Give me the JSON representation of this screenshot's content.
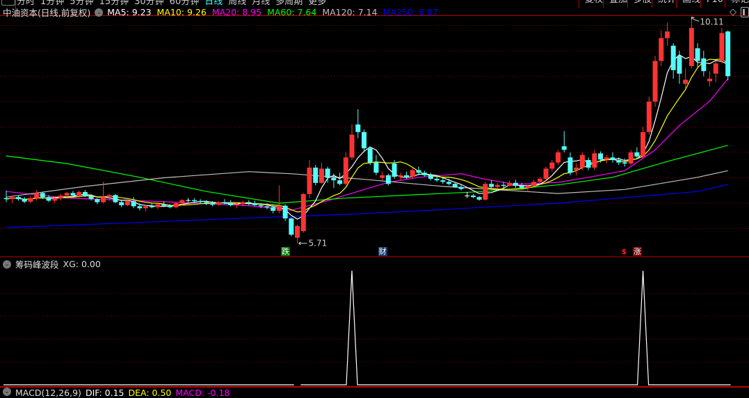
{
  "toolbar": {
    "periods": [
      "分时",
      "1分钟",
      "5分钟",
      "15分钟",
      "30分钟",
      "60分钟",
      "日线",
      "周线",
      "月线",
      "多周期",
      "更多"
    ],
    "active_period": "日线",
    "right_buttons": [
      "复权",
      "叠加",
      "多股",
      "统计",
      "画线",
      "F10",
      "标记"
    ]
  },
  "header": {
    "title": "中油资本(日线,前复权)",
    "ma": [
      {
        "label": "MA5: 9.23",
        "color": "#ffffff"
      },
      {
        "label": "MA10: 9.26",
        "color": "#ffff00"
      },
      {
        "label": "MA20: 8.95",
        "color": "#ff00ff"
      },
      {
        "label": "MA60: 7.64",
        "color": "#00ff00"
      },
      {
        "label": "MA120: 7.14",
        "color": "#c0c0c0"
      },
      {
        "label": "MA250: 6.87",
        "color": "#0000ff"
      }
    ]
  },
  "colors": {
    "up": "#ff3333",
    "down": "#54ffff",
    "grid": "#8b0000",
    "separator": "#c00000"
  },
  "annotations": {
    "high_label": "10.11",
    "low_label": "5.71"
  },
  "markers": [
    {
      "text": "跌",
      "index": 46,
      "bg": "#007a00",
      "color": "#fff"
    },
    {
      "text": "财",
      "index": 62,
      "bg": "#1a3a6a",
      "color": "#fff"
    },
    {
      "text": "$",
      "index": 102,
      "bg": "transparent",
      "color": "#ff2020"
    },
    {
      "text": "涨",
      "index": 104,
      "bg": "#7a0000",
      "color": "#fff"
    }
  ],
  "indicator": {
    "title": "筹码峰波段",
    "value_label": "XG: 0.00",
    "signal_indices": [
      57,
      105
    ],
    "gap_indices": [
      48
    ]
  },
  "bottom_indicator": {
    "title": "MACD(12,26,9)",
    "items": [
      {
        "label": "DIF: 0.15",
        "color": "#ffffff"
      },
      {
        "label": "DEA: 0.50",
        "color": "#ffff00"
      },
      {
        "label": "MACD: -0.18",
        "color": "#ff00ff"
      }
    ]
  },
  "chart_data": {
    "type": "candlestick",
    "y_grid_step": 0.5,
    "ylim": [
      5.6,
      10.2
    ],
    "ohlc": [
      [
        6.6,
        6.75,
        6.52,
        6.58
      ],
      [
        6.58,
        6.65,
        6.5,
        6.62
      ],
      [
        6.62,
        6.66,
        6.55,
        6.58
      ],
      [
        6.58,
        6.62,
        6.5,
        6.53
      ],
      [
        6.53,
        6.64,
        6.5,
        6.6
      ],
      [
        6.6,
        6.76,
        6.55,
        6.7
      ],
      [
        6.7,
        6.72,
        6.58,
        6.62
      ],
      [
        6.62,
        6.66,
        6.52,
        6.55
      ],
      [
        6.55,
        6.62,
        6.5,
        6.6
      ],
      [
        6.6,
        6.68,
        6.55,
        6.65
      ],
      [
        6.65,
        6.72,
        6.62,
        6.7
      ],
      [
        6.7,
        6.74,
        6.62,
        6.65
      ],
      [
        6.65,
        6.75,
        6.6,
        6.72
      ],
      [
        6.72,
        6.76,
        6.62,
        6.64
      ],
      [
        6.64,
        6.68,
        6.55,
        6.58
      ],
      [
        6.58,
        6.6,
        6.48,
        6.52
      ],
      [
        6.52,
        6.92,
        6.5,
        6.62
      ],
      [
        6.62,
        6.68,
        6.55,
        6.66
      ],
      [
        6.66,
        6.68,
        6.5,
        6.52
      ],
      [
        6.52,
        6.55,
        6.42,
        6.46
      ],
      [
        6.46,
        6.56,
        6.44,
        6.54
      ],
      [
        6.54,
        6.62,
        6.4,
        6.44
      ],
      [
        6.44,
        6.5,
        6.36,
        6.4
      ],
      [
        6.4,
        6.46,
        6.34,
        6.44
      ],
      [
        6.44,
        6.5,
        6.4,
        6.42
      ],
      [
        6.42,
        6.5,
        6.38,
        6.48
      ],
      [
        6.48,
        6.54,
        6.42,
        6.45
      ],
      [
        6.45,
        6.48,
        6.4,
        6.42
      ],
      [
        6.42,
        6.52,
        6.4,
        6.5
      ],
      [
        6.5,
        6.58,
        6.46,
        6.56
      ],
      [
        6.56,
        6.6,
        6.52,
        6.56
      ],
      [
        6.56,
        6.6,
        6.5,
        6.54
      ],
      [
        6.54,
        6.58,
        6.48,
        6.52
      ],
      [
        6.52,
        6.56,
        6.46,
        6.5
      ],
      [
        6.5,
        6.54,
        6.44,
        6.47
      ],
      [
        6.47,
        6.54,
        6.45,
        6.52
      ],
      [
        6.52,
        6.58,
        6.48,
        6.5
      ],
      [
        6.5,
        6.56,
        6.44,
        6.46
      ],
      [
        6.46,
        6.52,
        6.4,
        6.48
      ],
      [
        6.48,
        6.55,
        6.44,
        6.52
      ],
      [
        6.52,
        6.56,
        6.46,
        6.5
      ],
      [
        6.5,
        6.55,
        6.45,
        6.46
      ],
      [
        6.46,
        6.5,
        6.4,
        6.44
      ],
      [
        6.44,
        6.5,
        6.38,
        6.42
      ],
      [
        6.42,
        6.48,
        6.3,
        6.35
      ],
      [
        6.35,
        6.85,
        6.3,
        6.45
      ],
      [
        6.45,
        6.48,
        6.15,
        6.2
      ],
      [
        6.2,
        6.22,
        5.85,
        5.88
      ],
      [
        5.82,
        6.08,
        5.71,
        6.05
      ],
      [
        5.95,
        6.7,
        5.92,
        6.68
      ],
      [
        6.68,
        7.35,
        6.6,
        7.2
      ],
      [
        7.2,
        7.25,
        6.85,
        6.9
      ],
      [
        6.9,
        7.3,
        6.88,
        7.18
      ],
      [
        7.18,
        7.22,
        6.9,
        7.0
      ],
      [
        7.0,
        7.08,
        6.8,
        6.95
      ],
      [
        6.95,
        7.1,
        6.85,
        6.88
      ],
      [
        6.88,
        7.5,
        6.85,
        7.4
      ],
      [
        7.4,
        8.05,
        7.35,
        7.85
      ],
      [
        8.05,
        8.35,
        7.78,
        7.9
      ],
      [
        7.9,
        7.95,
        7.5,
        7.58
      ],
      [
        7.58,
        7.62,
        7.25,
        7.3
      ],
      [
        7.3,
        7.45,
        7.05,
        7.1
      ],
      [
        7.0,
        7.12,
        6.95,
        7.05
      ],
      [
        7.05,
        7.08,
        6.85,
        6.88
      ],
      [
        7.28,
        7.35,
        6.98,
        7.02
      ],
      [
        7.02,
        7.1,
        6.95,
        7.05
      ],
      [
        7.05,
        7.12,
        6.98,
        7.02
      ],
      [
        7.02,
        7.2,
        6.98,
        7.15
      ],
      [
        7.15,
        7.22,
        7.05,
        7.1
      ],
      [
        7.1,
        7.14,
        7.02,
        7.05
      ],
      [
        7.05,
        7.1,
        6.95,
        6.98
      ],
      [
        6.98,
        7.05,
        6.92,
        6.95
      ],
      [
        6.95,
        7.0,
        6.88,
        6.92
      ],
      [
        6.92,
        6.98,
        6.85,
        6.88
      ],
      [
        6.88,
        6.92,
        6.8,
        6.82
      ],
      [
        6.82,
        6.86,
        6.75,
        6.78
      ],
      [
        6.65,
        6.72,
        6.6,
        6.65
      ],
      [
        6.65,
        6.68,
        6.6,
        6.62
      ],
      [
        6.62,
        6.64,
        6.55,
        6.57
      ],
      [
        6.57,
        6.92,
        6.55,
        6.88
      ],
      [
        6.88,
        6.95,
        6.78,
        6.82
      ],
      [
        6.82,
        6.9,
        6.78,
        6.86
      ],
      [
        6.86,
        6.92,
        6.8,
        6.84
      ],
      [
        6.84,
        6.95,
        6.82,
        6.9
      ],
      [
        6.9,
        6.96,
        6.8,
        6.84
      ],
      [
        6.84,
        6.9,
        6.78,
        6.8
      ],
      [
        6.8,
        6.86,
        6.72,
        6.84
      ],
      [
        6.84,
        6.96,
        6.82,
        6.92
      ],
      [
        6.92,
        7.02,
        6.88,
        6.98
      ],
      [
        6.98,
        7.22,
        6.95,
        7.18
      ],
      [
        7.18,
        7.35,
        7.12,
        7.3
      ],
      [
        7.3,
        7.55,
        7.25,
        7.5
      ],
      [
        7.62,
        7.92,
        7.5,
        7.55
      ],
      [
        7.4,
        7.5,
        7.05,
        7.1
      ],
      [
        7.15,
        7.28,
        7.05,
        7.2
      ],
      [
        7.2,
        7.5,
        7.15,
        7.45
      ],
      [
        7.35,
        7.4,
        7.15,
        7.2
      ],
      [
        7.2,
        7.55,
        7.15,
        7.48
      ],
      [
        7.48,
        7.52,
        7.3,
        7.36
      ],
      [
        7.36,
        7.45,
        7.28,
        7.4
      ],
      [
        7.4,
        7.5,
        7.3,
        7.35
      ],
      [
        7.35,
        7.4,
        7.25,
        7.3
      ],
      [
        7.3,
        7.38,
        7.22,
        7.28
      ],
      [
        7.28,
        7.55,
        7.25,
        7.5
      ],
      [
        7.5,
        7.6,
        7.38,
        7.42
      ],
      [
        7.42,
        8.0,
        7.4,
        7.9
      ],
      [
        7.9,
        8.6,
        7.85,
        8.5
      ],
      [
        8.5,
        9.4,
        8.4,
        9.3
      ],
      [
        9.3,
        9.9,
        9.2,
        9.75
      ],
      [
        9.75,
        10.05,
        9.6,
        9.88
      ],
      [
        9.6,
        9.65,
        8.95,
        9.12
      ],
      [
        9.4,
        9.5,
        8.85,
        9.05
      ],
      [
        8.85,
        9.15,
        8.75,
        8.93
      ],
      [
        9.2,
        10.11,
        9.15,
        9.95
      ],
      [
        9.55,
        9.65,
        9.18,
        9.3
      ],
      [
        9.35,
        9.5,
        9.0,
        9.1
      ],
      [
        8.9,
        9.1,
        8.8,
        8.95
      ],
      [
        9.05,
        9.3,
        8.88,
        9.25
      ],
      [
        9.3,
        9.95,
        9.25,
        9.85
      ],
      [
        9.88,
        9.9,
        8.92,
        9.0
      ]
    ],
    "ma_computed": [
      {
        "name": "MA5",
        "period": 5,
        "color": "#ffffff"
      },
      {
        "name": "MA10",
        "period": 10,
        "color": "#ffff00"
      }
    ],
    "ma_sampled": [
      {
        "name": "MA20",
        "color": "#ff00ff",
        "points": [
          [
            0,
            6.73
          ],
          [
            10,
            6.6
          ],
          [
            26,
            6.53
          ],
          [
            40,
            6.45
          ],
          [
            47,
            6.36
          ],
          [
            53,
            6.55
          ],
          [
            59,
            6.77
          ],
          [
            63,
            6.91
          ],
          [
            68,
            7.01
          ],
          [
            75,
            7.08
          ],
          [
            79,
            6.97
          ],
          [
            84,
            6.87
          ],
          [
            91,
            6.91
          ],
          [
            96,
            7.01
          ],
          [
            102,
            7.14
          ],
          [
            107,
            7.55
          ],
          [
            111,
            8.03
          ],
          [
            116,
            8.51
          ],
          [
            119,
            8.95
          ]
        ]
      },
      {
        "name": "MA60",
        "color": "#00ff00",
        "points": [
          [
            0,
            7.43
          ],
          [
            10,
            7.28
          ],
          [
            22,
            7.01
          ],
          [
            33,
            6.73
          ],
          [
            45,
            6.5
          ],
          [
            56,
            6.6
          ],
          [
            68,
            6.67
          ],
          [
            79,
            6.73
          ],
          [
            91,
            6.86
          ],
          [
            100,
            7.01
          ],
          [
            109,
            7.32
          ],
          [
            119,
            7.64
          ]
        ]
      },
      {
        "name": "MA120",
        "color": "#c0c0c0",
        "points": [
          [
            0,
            6.62
          ],
          [
            13,
            6.83
          ],
          [
            26,
            7.0
          ],
          [
            40,
            7.12
          ],
          [
            47,
            7.08
          ],
          [
            59,
            6.97
          ],
          [
            72,
            6.83
          ],
          [
            79,
            6.78
          ],
          [
            91,
            6.69
          ],
          [
            102,
            6.77
          ],
          [
            114,
            7.01
          ],
          [
            119,
            7.14
          ]
        ]
      },
      {
        "name": "MA250",
        "color": "#0000ff",
        "points": [
          [
            0,
            6.02
          ],
          [
            22,
            6.12
          ],
          [
            40,
            6.21
          ],
          [
            56,
            6.28
          ],
          [
            68,
            6.35
          ],
          [
            79,
            6.42
          ],
          [
            91,
            6.5
          ],
          [
            102,
            6.61
          ],
          [
            114,
            6.73
          ],
          [
            119,
            6.87
          ]
        ]
      }
    ],
    "high": {
      "index": 113,
      "value": 10.11
    },
    "low": {
      "index": 48,
      "value": 5.71
    }
  }
}
